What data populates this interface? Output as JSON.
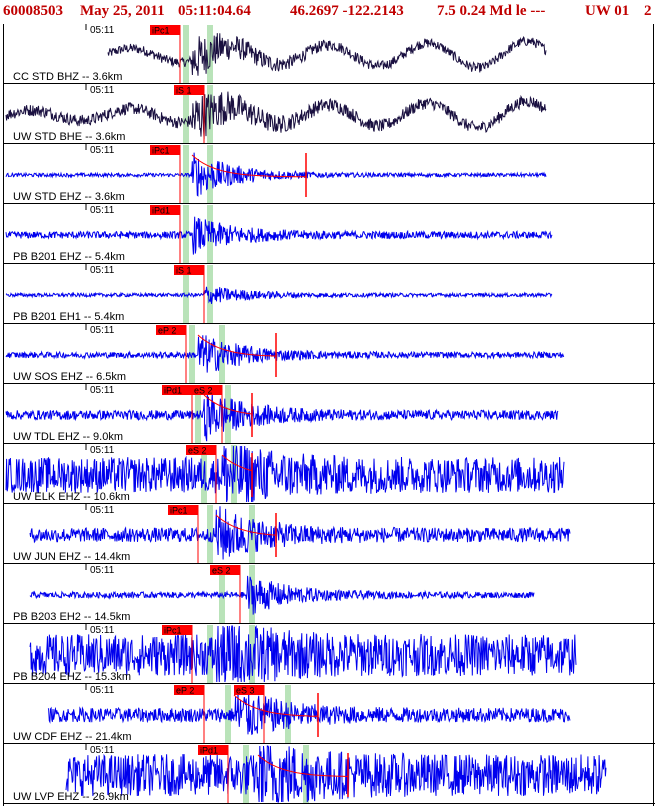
{
  "header": {
    "event_id": "60008503",
    "date": "May 25, 2011",
    "time": "05:11:04.64",
    "coords": "46.2697 -122.2143",
    "magnitude_info": "7.5 0.24 Md le ---",
    "network": "UW 01",
    "page": "2"
  },
  "colors": {
    "header_text": "#c00000",
    "trace_dark": "#1a1040",
    "trace_blue": "#0000ee",
    "pick_red": "#ff0000",
    "band_green": "#b9e3b9",
    "grid_black": "#000000"
  },
  "chart_data": {
    "type": "line",
    "time_tick_label": "05:11",
    "traces": [
      {
        "label": "CC STD BHZ -- 3.6km",
        "color": "dark",
        "amp": 0.35,
        "noise": 0.08,
        "start": 0.17,
        "end": 0.9,
        "onset": 0.31,
        "picks": [
          {
            "label": "iPc1",
            "t": 0.29
          }
        ],
        "bands": [
          0.3,
          0.34
        ],
        "decay": false
      },
      {
        "label": "UW STD BHE -- 3.6km",
        "color": "dark",
        "amp": 0.4,
        "noise": 0.1,
        "start": 0.0,
        "end": 0.9,
        "onset": 0.31,
        "picks": [
          {
            "label": "iS 1",
            "t": 0.33
          }
        ],
        "bands": [
          0.3,
          0.34
        ],
        "decay": false
      },
      {
        "label": "UW STD EHZ -- 3.6km",
        "color": "blue",
        "amp": 0.38,
        "noise": 0.03,
        "start": 0.0,
        "end": 0.9,
        "onset": 0.31,
        "picks": [
          {
            "label": "iPc1",
            "t": 0.29
          }
        ],
        "bands": [
          0.3,
          0.34
        ],
        "decay": true,
        "end_pick": 0.5
      },
      {
        "label": "PB B201 EHZ -- 5.4km",
        "color": "blue",
        "amp": 0.28,
        "noise": 0.06,
        "start": 0.0,
        "end": 0.91,
        "onset": 0.31,
        "picks": [
          {
            "label": "iPd1",
            "t": 0.29
          }
        ],
        "bands": [
          0.3,
          0.34
        ],
        "decay": false
      },
      {
        "label": "PB B201 EH1 -- 5.4km",
        "color": "blue",
        "amp": 0.15,
        "noise": 0.03,
        "start": 0.0,
        "end": 0.91,
        "onset": 0.33,
        "picks": [
          {
            "label": "iS 1",
            "t": 0.33
          }
        ],
        "bands": [
          0.3,
          0.34
        ],
        "decay": false
      },
      {
        "label": "UW SOS EHZ -- 6.5km",
        "color": "blue",
        "amp": 0.35,
        "noise": 0.05,
        "start": 0.0,
        "end": 0.93,
        "onset": 0.32,
        "picks": [
          {
            "label": "eP 2",
            "t": 0.3
          }
        ],
        "bands": [
          0.31,
          0.36
        ],
        "decay": true,
        "end_pick": 0.45
      },
      {
        "label": "UW TDL EHZ -- 9.0km",
        "color": "blue",
        "amp": 0.38,
        "noise": 0.08,
        "start": 0.0,
        "end": 0.92,
        "onset": 0.33,
        "picks": [
          {
            "label": "iPd1",
            "t": 0.31
          },
          {
            "label": "eS 2",
            "t": 0.36
          }
        ],
        "bands": [
          0.32,
          0.37
        ],
        "decay": true,
        "end_pick": 0.41
      },
      {
        "label": "UW ELK EHZ -- 10.6km",
        "color": "blue",
        "amp": 0.42,
        "noise": 0.3,
        "start": 0.0,
        "end": 0.93,
        "onset": 0.36,
        "picks": [
          {
            "label": "eS 2",
            "t": 0.35
          }
        ],
        "bands": [
          0.33,
          0.38
        ],
        "decay": true,
        "end_pick": 0.41
      },
      {
        "label": "UW JUN EHZ -- 14.4km",
        "color": "blue",
        "amp": 0.42,
        "noise": 0.12,
        "start": 0.04,
        "end": 0.94,
        "onset": 0.35,
        "picks": [
          {
            "label": "iPc1",
            "t": 0.32
          }
        ],
        "bands": [
          0.34,
          0.41
        ],
        "decay": true,
        "end_pick": 0.45
      },
      {
        "label": "PB B203 EH2 -- 14.5km",
        "color": "blue",
        "amp": 0.33,
        "noise": 0.05,
        "start": 0.04,
        "end": 0.88,
        "onset": 0.4,
        "picks": [
          {
            "label": "eS 2",
            "t": 0.39
          }
        ],
        "bands": [
          0.36,
          0.41
        ],
        "decay": false
      },
      {
        "label": "PB B204 EHZ -- 15.3km",
        "color": "blue",
        "amp": 0.4,
        "noise": 0.35,
        "start": 0.04,
        "end": 0.95,
        "onset": 0.35,
        "picks": [
          {
            "label": "iPc1",
            "t": 0.31
          }
        ],
        "bands": [
          0.34,
          0.41
        ],
        "decay": false
      },
      {
        "label": "UW CDF EHZ -- 21.4km",
        "color": "blue",
        "amp": 0.42,
        "noise": 0.12,
        "start": 0.07,
        "end": 0.94,
        "onset": 0.38,
        "picks": [
          {
            "label": "eP 2",
            "t": 0.33
          },
          {
            "label": "eS 3",
            "t": 0.43
          }
        ],
        "bands": [
          0.37,
          0.47
        ],
        "decay": true,
        "end_pick": 0.52
      },
      {
        "label": "UW LVP EHZ -- 26.9km",
        "color": "blue",
        "amp": 0.4,
        "noise": 0.35,
        "start": 0.1,
        "end": 1.0,
        "onset": 0.42,
        "picks": [
          {
            "label": "iPd1",
            "t": 0.37
          }
        ],
        "bands": [
          0.4,
          0.5
        ],
        "decay": true,
        "end_pick": 0.57
      }
    ]
  }
}
